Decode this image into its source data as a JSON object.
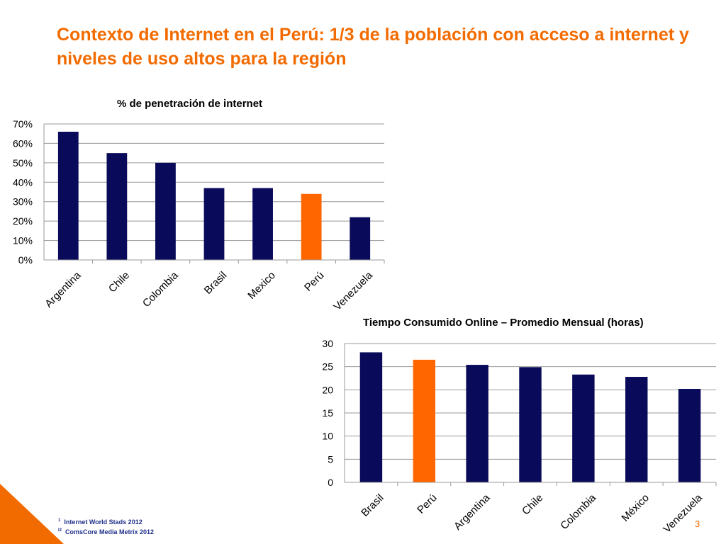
{
  "slide": {
    "title": "Contexto de Internet en el Perú: 1/3 de la población con acceso a internet y niveles de uso altos para la región",
    "footnotes": [
      {
        "marker": "1",
        "text": "Internet World Stads 2012"
      },
      {
        "marker": "l2",
        "text": "ComsCore Media  Metrix 2012"
      }
    ],
    "page_number": "3"
  },
  "colors": {
    "primary": "#0a0a5a",
    "highlight": "#ff6600",
    "title": "#f26b00"
  },
  "chart_data": [
    {
      "type": "bar",
      "title": "% de penetración de internet",
      "categories": [
        "Argentina",
        "Chile",
        "Colombia",
        "Brasil",
        "Mexico",
        "Perú",
        "Venezuela"
      ],
      "values": [
        66,
        55,
        50,
        37,
        37,
        34,
        22
      ],
      "highlight": "Perú",
      "ylim": [
        0,
        70
      ],
      "yticks": [
        "0%",
        "10%",
        "20%",
        "30%",
        "40%",
        "50%",
        "60%",
        "70%"
      ],
      "grid": true
    },
    {
      "type": "bar",
      "title": "Tiempo Consumido Online – Promedio Mensual (horas)",
      "categories": [
        "Brasil",
        "Perú",
        "Argentina",
        "Chile",
        "Colombia",
        "México",
        "Venezuela"
      ],
      "values": [
        28.1,
        26.5,
        25.4,
        24.9,
        23.3,
        22.8,
        20.2
      ],
      "highlight": "Perú",
      "ylim": [
        0,
        30
      ],
      "yticks": [
        "0",
        "5",
        "10",
        "15",
        "20",
        "25",
        "30"
      ],
      "grid": true
    }
  ]
}
